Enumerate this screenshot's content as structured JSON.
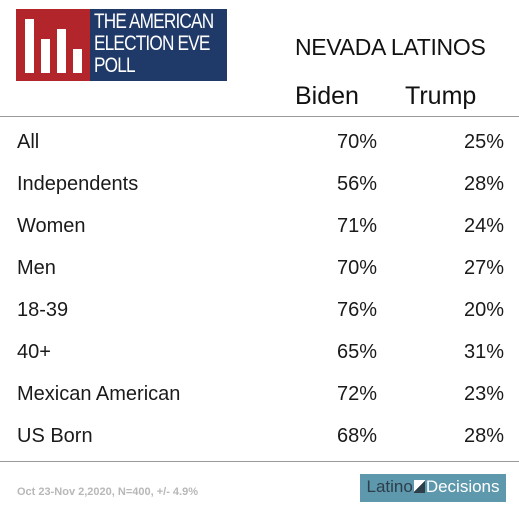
{
  "logo": {
    "line1": "THE AMERICAN",
    "line2": "ELECTION EVE",
    "line3": "POLL"
  },
  "colors": {
    "logo_red": "#b1252b",
    "logo_navy": "#1f3a68",
    "latino_decisions_teal": "#5e98ad"
  },
  "chart_data": {
    "type": "table",
    "title": "NEVADA LATINOS",
    "columns": [
      "Biden",
      "Trump"
    ],
    "rows": [
      {
        "label": "All",
        "biden": "70%",
        "trump": "25%"
      },
      {
        "label": "Independents",
        "biden": "56%",
        "trump": "28%"
      },
      {
        "label": "Women",
        "biden": "71%",
        "trump": "24%"
      },
      {
        "label": "Men",
        "biden": "70%",
        "trump": "27%"
      },
      {
        "label": "18-39",
        "biden": "76%",
        "trump": "20%"
      },
      {
        "label": "40+",
        "biden": "65%",
        "trump": "31%"
      },
      {
        "label": "Mexican American",
        "biden": "72%",
        "trump": "23%"
      },
      {
        "label": "US Born",
        "biden": "68%",
        "trump": "28%"
      }
    ]
  },
  "footer": {
    "note": "Oct 23-Nov 2,2020, N=400, +/- 4.9%",
    "brand_part1": "Latino",
    "brand_part2": "Decisions"
  }
}
